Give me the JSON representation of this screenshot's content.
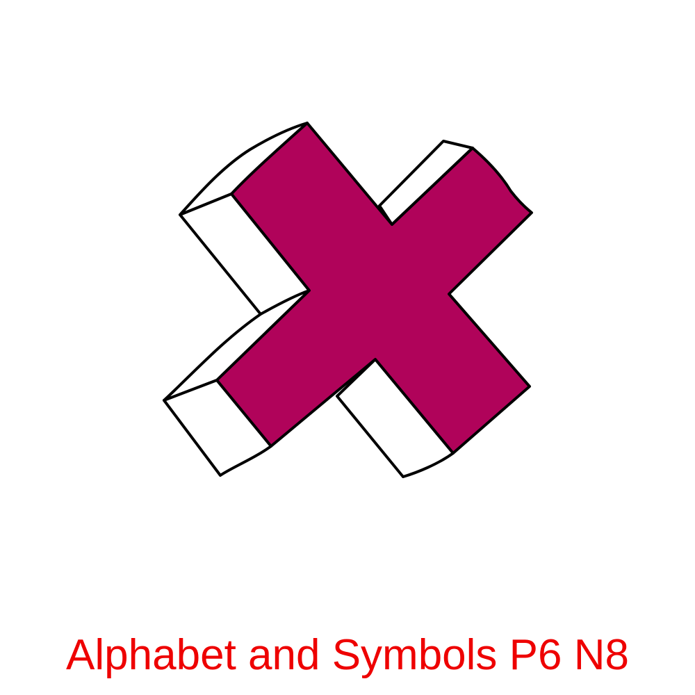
{
  "caption": "Alphabet and Symbols P6 N8",
  "symbol": {
    "icon": "3d-x-letter-icon",
    "face_color": "#b0035a",
    "side_color": "#ffffff",
    "outline_color": "#000000"
  },
  "caption_color": "#ee0000"
}
